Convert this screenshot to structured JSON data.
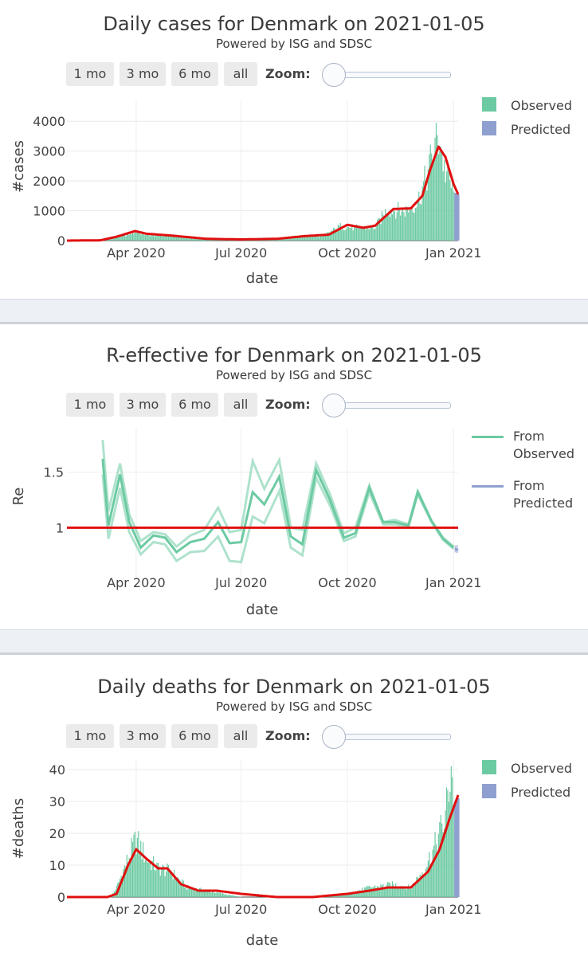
{
  "common": {
    "subtitle": "Powered by ISG and SDSC",
    "buttons": [
      "1 mo",
      "3 mo",
      "6 mo",
      "all"
    ],
    "zoom_label": "Zoom:"
  },
  "colors": {
    "observed": "#6ccaa2",
    "predicted": "#8fa0d0",
    "fit_line": "#e01010",
    "separator": "#edf0f5"
  },
  "chart_data": [
    {
      "type": "bar",
      "title": "Daily cases for Denmark on 2021-01-05",
      "xlabel": "date",
      "ylabel": "#cases",
      "x_ticks": [
        "Apr 2020",
        "Jul 2020",
        "Oct 2020",
        "Jan 2021"
      ],
      "y_ticks": [
        0,
        1000,
        2000,
        3000,
        4000
      ],
      "ylim": [
        0,
        4700
      ],
      "xlim": [
        "2020-02-01",
        "2021-01-05"
      ],
      "legend": [
        "Observed",
        "Predicted"
      ],
      "legend_position": "right",
      "observed_samples": [
        [
          "2020-03-01",
          0
        ],
        [
          "2020-03-10",
          80
        ],
        [
          "2020-03-20",
          150
        ],
        [
          "2020-03-31",
          300
        ],
        [
          "2020-04-10",
          200
        ],
        [
          "2020-05-01",
          160
        ],
        [
          "2020-06-01",
          60
        ],
        [
          "2020-07-01",
          20
        ],
        [
          "2020-08-01",
          60
        ],
        [
          "2020-08-20",
          150
        ],
        [
          "2020-09-10",
          160
        ],
        [
          "2020-09-25",
          480
        ],
        [
          "2020-10-10",
          420
        ],
        [
          "2020-10-25",
          450
        ],
        [
          "2020-11-05",
          1050
        ],
        [
          "2020-11-20",
          1000
        ],
        [
          "2020-12-01",
          1300
        ],
        [
          "2020-12-10",
          2300
        ],
        [
          "2020-12-15",
          3100
        ],
        [
          "2020-12-20",
          3500
        ],
        [
          "2020-12-24",
          2400
        ],
        [
          "2020-12-29",
          2000
        ],
        [
          "2021-01-01",
          1500
        ]
      ],
      "predicted_samples": [
        [
          "2021-01-02",
          1600
        ],
        [
          "2021-01-05",
          1550
        ]
      ],
      "fit_line": [
        [
          "2020-02-01",
          0
        ],
        [
          "2020-03-01",
          10
        ],
        [
          "2020-03-15",
          130
        ],
        [
          "2020-03-31",
          320
        ],
        [
          "2020-04-10",
          230
        ],
        [
          "2020-05-01",
          170
        ],
        [
          "2020-06-01",
          60
        ],
        [
          "2020-07-01",
          40
        ],
        [
          "2020-08-01",
          60
        ],
        [
          "2020-08-25",
          150
        ],
        [
          "2020-09-15",
          200
        ],
        [
          "2020-10-01",
          530
        ],
        [
          "2020-10-15",
          430
        ],
        [
          "2020-10-25",
          500
        ],
        [
          "2020-11-10",
          1060
        ],
        [
          "2020-11-25",
          1080
        ],
        [
          "2020-12-05",
          1500
        ],
        [
          "2020-12-12",
          2400
        ],
        [
          "2020-12-19",
          3150
        ],
        [
          "2020-12-25",
          2800
        ],
        [
          "2021-01-01",
          1900
        ],
        [
          "2021-01-05",
          1550
        ]
      ]
    },
    {
      "type": "line",
      "title": "R-effective for Denmark on 2021-01-05",
      "xlabel": "date",
      "ylabel": "Re",
      "x_ticks": [
        "Apr 2020",
        "Jul 2020",
        "Oct 2020",
        "Jan 2021"
      ],
      "y_ticks": [
        "1",
        "1.5"
      ],
      "ylim": [
        0.55,
        1.9
      ],
      "reference_line": 1,
      "legend": [
        "From Observed",
        "From Predicted"
      ],
      "legend_position": "right",
      "series": [
        {
          "name": "From Observed",
          "values": [
            [
              "2020-03-03",
              1.62
            ],
            [
              "2020-03-08",
              1.02
            ],
            [
              "2020-03-18",
              1.48
            ],
            [
              "2020-03-26",
              1.05
            ],
            [
              "2020-04-05",
              0.82
            ],
            [
              "2020-04-16",
              0.93
            ],
            [
              "2020-04-26",
              0.91
            ],
            [
              "2020-05-06",
              0.78
            ],
            [
              "2020-05-18",
              0.87
            ],
            [
              "2020-05-30",
              0.9
            ],
            [
              "2020-06-11",
              1.05
            ],
            [
              "2020-06-21",
              0.86
            ],
            [
              "2020-07-01",
              0.87
            ],
            [
              "2020-07-11",
              1.32
            ],
            [
              "2020-07-21",
              1.21
            ],
            [
              "2020-08-03",
              1.46
            ],
            [
              "2020-08-13",
              0.92
            ],
            [
              "2020-08-23",
              0.85
            ],
            [
              "2020-09-04",
              1.52
            ],
            [
              "2020-09-16",
              1.25
            ],
            [
              "2020-09-28",
              0.91
            ],
            [
              "2020-10-08",
              0.95
            ],
            [
              "2020-10-20",
              1.36
            ],
            [
              "2020-11-01",
              1.05
            ],
            [
              "2020-11-11",
              1.05
            ],
            [
              "2020-11-23",
              1.02
            ],
            [
              "2020-12-01",
              1.32
            ],
            [
              "2020-12-13",
              1.06
            ],
            [
              "2020-12-23",
              0.9
            ],
            [
              "2021-01-01",
              0.82
            ]
          ],
          "upper": [
            [
              "2020-03-03",
              1.79
            ],
            [
              "2020-03-08",
              1.15
            ],
            [
              "2020-03-18",
              1.58
            ],
            [
              "2020-03-26",
              1.12
            ],
            [
              "2020-04-05",
              0.88
            ],
            [
              "2020-04-16",
              0.96
            ],
            [
              "2020-04-26",
              0.94
            ],
            [
              "2020-05-06",
              0.83
            ],
            [
              "2020-05-18",
              0.93
            ],
            [
              "2020-05-30",
              0.98
            ],
            [
              "2020-06-11",
              1.18
            ],
            [
              "2020-06-21",
              0.96
            ],
            [
              "2020-07-01",
              0.98
            ],
            [
              "2020-07-11",
              1.6
            ],
            [
              "2020-07-21",
              1.35
            ],
            [
              "2020-08-03",
              1.61
            ],
            [
              "2020-08-13",
              1.0
            ],
            [
              "2020-08-23",
              0.98
            ],
            [
              "2020-09-04",
              1.58
            ],
            [
              "2020-09-16",
              1.3
            ],
            [
              "2020-09-28",
              0.95
            ],
            [
              "2020-10-08",
              1.0
            ],
            [
              "2020-10-20",
              1.38
            ],
            [
              "2020-11-01",
              1.05
            ],
            [
              "2020-11-11",
              1.07
            ],
            [
              "2020-11-23",
              1.03
            ],
            [
              "2020-12-01",
              1.33
            ],
            [
              "2020-12-13",
              1.06
            ],
            [
              "2020-12-23",
              0.91
            ],
            [
              "2021-01-01",
              0.83
            ]
          ],
          "lower": [
            [
              "2020-03-03",
              1.48
            ],
            [
              "2020-03-08",
              0.9
            ],
            [
              "2020-03-18",
              1.36
            ],
            [
              "2020-03-26",
              0.96
            ],
            [
              "2020-04-05",
              0.76
            ],
            [
              "2020-04-16",
              0.87
            ],
            [
              "2020-04-26",
              0.85
            ],
            [
              "2020-05-06",
              0.7
            ],
            [
              "2020-05-18",
              0.78
            ],
            [
              "2020-05-30",
              0.79
            ],
            [
              "2020-06-11",
              0.92
            ],
            [
              "2020-06-21",
              0.7
            ],
            [
              "2020-07-01",
              0.69
            ],
            [
              "2020-07-11",
              1.1
            ],
            [
              "2020-07-21",
              1.04
            ],
            [
              "2020-08-03",
              1.33
            ],
            [
              "2020-08-13",
              0.82
            ],
            [
              "2020-08-23",
              0.75
            ],
            [
              "2020-09-04",
              1.45
            ],
            [
              "2020-09-16",
              1.2
            ],
            [
              "2020-09-28",
              0.88
            ],
            [
              "2020-10-08",
              0.92
            ],
            [
              "2020-10-20",
              1.32
            ],
            [
              "2020-11-01",
              1.03
            ],
            [
              "2020-11-11",
              1.03
            ],
            [
              "2020-11-23",
              1.01
            ],
            [
              "2020-12-01",
              1.3
            ],
            [
              "2020-12-13",
              1.05
            ],
            [
              "2020-12-23",
              0.89
            ],
            [
              "2021-01-01",
              0.81
            ]
          ]
        },
        {
          "name": "From Predicted",
          "values": [
            [
              "2021-01-02",
              0.81
            ],
            [
              "2021-01-05",
              0.8
            ]
          ],
          "upper": [
            [
              "2021-01-02",
              0.83
            ],
            [
              "2021-01-05",
              0.83
            ]
          ],
          "lower": [
            [
              "2021-01-02",
              0.79
            ],
            [
              "2021-01-05",
              0.78
            ]
          ]
        }
      ]
    },
    {
      "type": "bar",
      "title": "Daily deaths for Denmark on 2021-01-05",
      "xlabel": "date",
      "ylabel": "#deaths",
      "x_ticks": [
        "Apr 2020",
        "Jul 2020",
        "Oct 2020",
        "Jan 2021"
      ],
      "y_ticks": [
        0,
        10,
        20,
        30,
        40
      ],
      "ylim": [
        0,
        43
      ],
      "legend": [
        "Observed",
        "Predicted"
      ],
      "legend_position": "right",
      "observed_samples": [
        [
          "2020-03-10",
          0
        ],
        [
          "2020-03-15",
          3
        ],
        [
          "2020-03-25",
          12
        ],
        [
          "2020-04-01",
          18
        ],
        [
          "2020-04-10",
          12
        ],
        [
          "2020-04-20",
          9
        ],
        [
          "2020-05-01",
          8
        ],
        [
          "2020-05-15",
          3
        ],
        [
          "2020-06-01",
          2
        ],
        [
          "2020-07-01",
          0
        ],
        [
          "2020-08-01",
          0
        ],
        [
          "2020-09-01",
          0
        ],
        [
          "2020-10-01",
          1
        ],
        [
          "2020-10-20",
          3
        ],
        [
          "2020-11-10",
          4
        ],
        [
          "2020-11-25",
          3
        ],
        [
          "2020-12-05",
          8
        ],
        [
          "2020-12-15",
          15
        ],
        [
          "2020-12-25",
          25
        ],
        [
          "2020-12-30",
          42
        ],
        [
          "2021-01-01",
          32
        ]
      ],
      "predicted_samples": [
        [
          "2021-01-02",
          30
        ],
        [
          "2021-01-05",
          31
        ]
      ],
      "fit_line": [
        [
          "2020-02-01",
          0
        ],
        [
          "2020-03-07",
          0
        ],
        [
          "2020-03-15",
          1
        ],
        [
          "2020-03-25",
          10
        ],
        [
          "2020-04-01",
          15
        ],
        [
          "2020-04-10",
          12
        ],
        [
          "2020-04-20",
          9
        ],
        [
          "2020-04-28",
          9
        ],
        [
          "2020-05-10",
          4
        ],
        [
          "2020-05-25",
          2
        ],
        [
          "2020-06-10",
          2
        ],
        [
          "2020-07-01",
          1
        ],
        [
          "2020-08-01",
          0
        ],
        [
          "2020-09-01",
          0
        ],
        [
          "2020-10-01",
          1
        ],
        [
          "2020-10-20",
          2
        ],
        [
          "2020-11-05",
          3
        ],
        [
          "2020-11-25",
          3
        ],
        [
          "2020-12-10",
          8
        ],
        [
          "2020-12-20",
          15
        ],
        [
          "2020-12-28",
          24
        ],
        [
          "2021-01-05",
          32
        ]
      ]
    }
  ]
}
